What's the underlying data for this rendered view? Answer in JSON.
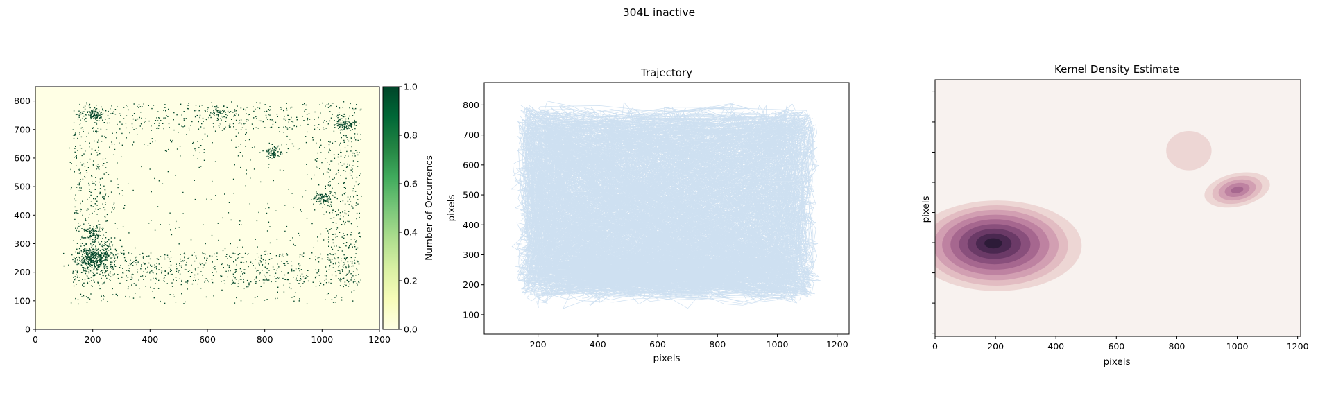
{
  "figure": {
    "suptitle": "304L inactive"
  },
  "colors": {
    "heatmap_low": "#ffffe5",
    "heatmap_high": "#004529",
    "trajectory_line": "#c6dbef",
    "kde_background": "#f8f2ef",
    "kde_levels": [
      "#edd6d4",
      "#e2bcc2",
      "#d29fb2",
      "#be82a1",
      "#a6678f",
      "#894f7c",
      "#6b3a67",
      "#4a2850",
      "#2d1b38"
    ]
  },
  "chart_data": [
    {
      "type": "heatmap",
      "title": "",
      "xlabel": "",
      "ylabel": "",
      "xlim": [
        0,
        1200
      ],
      "ylim": [
        0,
        850
      ],
      "xticks": [
        0,
        200,
        400,
        600,
        800,
        1000,
        1200
      ],
      "yticks": [
        0,
        100,
        200,
        300,
        400,
        500,
        600,
        700,
        800
      ],
      "colorbar": {
        "label": "Number of Occurrencs",
        "range": [
          0.0,
          1.0
        ],
        "ticks": [
          "0.0",
          "0.2",
          "0.4",
          "0.6",
          "0.8",
          "1.0"
        ]
      },
      "occupied_region": {
        "x": [
          115,
          1135
        ],
        "y": [
          90,
          800
        ]
      },
      "hotspots": [
        {
          "x": 210,
          "y": 255,
          "intensity": "high"
        },
        {
          "x": 195,
          "y": 340,
          "intensity": "medium"
        },
        {
          "x": 830,
          "y": 620,
          "intensity": "medium"
        },
        {
          "x": 1005,
          "y": 460,
          "intensity": "medium"
        },
        {
          "x": 1080,
          "y": 720,
          "intensity": "medium"
        },
        {
          "x": 200,
          "y": 755,
          "intensity": "medium"
        },
        {
          "x": 640,
          "y": 760,
          "intensity": "low"
        }
      ]
    },
    {
      "type": "line",
      "title": "Trajectory",
      "xlabel": "pixels",
      "ylabel": "pixels",
      "xlim": [
        20,
        1240
      ],
      "ylim": [
        35,
        875
      ],
      "xticks": [
        200,
        400,
        600,
        800,
        1000,
        1200
      ],
      "yticks": [
        100,
        200,
        300,
        400,
        500,
        600,
        700,
        800
      ],
      "path_bounds": {
        "x": [
          60,
          1180
        ],
        "y": [
          60,
          830
        ]
      },
      "dense_areas": [
        {
          "x": 220,
          "y": 250
        },
        {
          "x": 200,
          "y": 650
        },
        {
          "x": 1050,
          "y": 700
        },
        {
          "x": 1050,
          "y": 220
        }
      ]
    },
    {
      "type": "area",
      "title": "Kernel Density Estimate",
      "xlabel": "pixels",
      "ylabel": "pixels",
      "xlim": [
        0,
        1210
      ],
      "ylim": [
        -10,
        840
      ],
      "xticks": [
        0,
        200,
        400,
        600,
        800,
        1000,
        1200
      ],
      "ytick_labels_shown": false,
      "density_peaks": [
        {
          "x": 205,
          "y": 290,
          "rx": 280,
          "ry": 150,
          "weight": 1.0
        },
        {
          "x": 1000,
          "y": 475,
          "rx": 110,
          "ry": 55,
          "weight": 0.55
        },
        {
          "x": 840,
          "y": 605,
          "rx": 75,
          "ry": 65,
          "weight": 0.1
        }
      ]
    }
  ]
}
